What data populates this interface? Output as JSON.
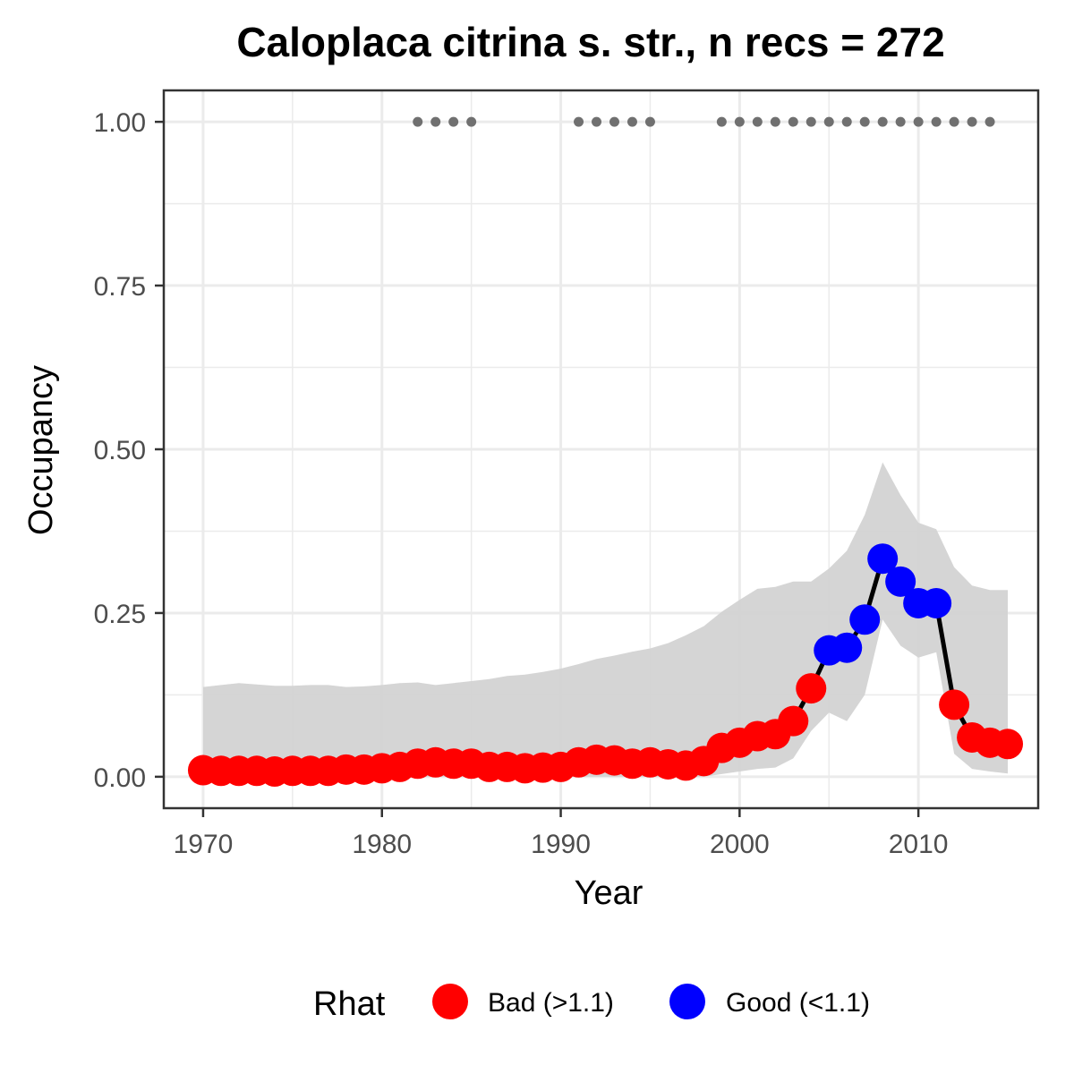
{
  "chart_data": {
    "type": "line",
    "title": "Caloplaca citrina s. str., n recs = 272",
    "xlabel": "Year",
    "ylabel": "Occupancy",
    "xlim": [
      1967.8,
      2016.7
    ],
    "ylim": [
      -0.048,
      1.048
    ],
    "x_ticks": [
      1970,
      1980,
      1990,
      2000,
      2010
    ],
    "x_tick_labels": [
      "1970",
      "1980",
      "1990",
      "2000",
      "2010"
    ],
    "y_ticks": [
      0,
      0.25,
      0.5,
      0.75,
      1.0
    ],
    "y_tick_labels": [
      "0.00",
      "0.25",
      "0.50",
      "0.75",
      "1.00"
    ],
    "grid": true,
    "colors": {
      "bad": "#ff0000",
      "good": "#0000ff",
      "ribbon": "#d3d3d3",
      "line": "#000000",
      "record_dot": "#707070",
      "grid": "#ebebeb",
      "panel_border": "#333333"
    },
    "legend": {
      "title": "Rhat",
      "position": "bottom",
      "entries": [
        {
          "key": "bad",
          "label": "Bad (>1.1)"
        },
        {
          "key": "good",
          "label": "Good (<1.1)"
        }
      ]
    },
    "series": [
      {
        "x": [
          1970,
          1971,
          1972,
          1973,
          1974,
          1975,
          1976,
          1977,
          1978,
          1979,
          1980,
          1981,
          1982,
          1983,
          1984,
          1985,
          1986,
          1987,
          1988,
          1989,
          1990,
          1991,
          1992,
          1993,
          1994,
          1995,
          1996,
          1997,
          1998,
          1999,
          2000,
          2001,
          2002,
          2003,
          2004,
          2005,
          2006,
          2007,
          2008,
          2009,
          2010,
          2011,
          2012,
          2013,
          2014,
          2015
        ],
        "y": [
          0.01,
          0.009,
          0.009,
          0.009,
          0.008,
          0.009,
          0.009,
          0.009,
          0.011,
          0.011,
          0.013,
          0.015,
          0.02,
          0.022,
          0.02,
          0.02,
          0.015,
          0.015,
          0.013,
          0.014,
          0.015,
          0.022,
          0.026,
          0.025,
          0.02,
          0.022,
          0.019,
          0.017,
          0.024,
          0.044,
          0.052,
          0.062,
          0.065,
          0.085,
          0.135,
          0.193,
          0.197,
          0.24,
          0.333,
          0.298,
          0.265,
          0.265,
          0.11,
          0.06,
          0.052,
          0.05
        ],
        "lower": [
          0.0,
          0.0,
          0.0,
          0.0,
          0.0,
          0.0,
          0.0,
          0.0,
          0.0,
          0.0,
          0.0,
          0.0,
          0.0,
          0.0,
          0.0,
          0.0,
          0.0,
          0.0,
          0.0,
          0.0,
          0.0,
          0.0,
          0.0,
          0.0,
          0.0,
          0.0,
          0.0,
          0.0,
          0.0,
          0.004,
          0.008,
          0.012,
          0.014,
          0.028,
          0.07,
          0.098,
          0.085,
          0.125,
          0.24,
          0.2,
          0.182,
          0.19,
          0.035,
          0.012,
          0.008,
          0.005
        ],
        "upper": [
          0.137,
          0.14,
          0.143,
          0.141,
          0.139,
          0.139,
          0.14,
          0.14,
          0.137,
          0.138,
          0.14,
          0.143,
          0.144,
          0.14,
          0.143,
          0.146,
          0.149,
          0.154,
          0.156,
          0.16,
          0.165,
          0.172,
          0.18,
          0.185,
          0.191,
          0.196,
          0.204,
          0.216,
          0.23,
          0.252,
          0.27,
          0.287,
          0.29,
          0.298,
          0.298,
          0.318,
          0.345,
          0.4,
          0.48,
          0.43,
          0.388,
          0.378,
          0.32,
          0.292,
          0.285,
          0.285
        ],
        "rhat": [
          "bad",
          "bad",
          "bad",
          "bad",
          "bad",
          "bad",
          "bad",
          "bad",
          "bad",
          "bad",
          "bad",
          "bad",
          "bad",
          "bad",
          "bad",
          "bad",
          "bad",
          "bad",
          "bad",
          "bad",
          "bad",
          "bad",
          "bad",
          "bad",
          "bad",
          "bad",
          "bad",
          "bad",
          "bad",
          "bad",
          "bad",
          "bad",
          "bad",
          "bad",
          "bad",
          "good",
          "good",
          "good",
          "good",
          "good",
          "good",
          "good",
          "bad",
          "bad",
          "bad",
          "bad"
        ]
      }
    ],
    "record_years": [
      1982,
      1983,
      1984,
      1985,
      1991,
      1992,
      1993,
      1994,
      1995,
      1999,
      2000,
      2001,
      2002,
      2003,
      2004,
      2005,
      2006,
      2007,
      2008,
      2009,
      2010,
      2011,
      2012,
      2013,
      2014
    ],
    "record_y": 1.0
  }
}
